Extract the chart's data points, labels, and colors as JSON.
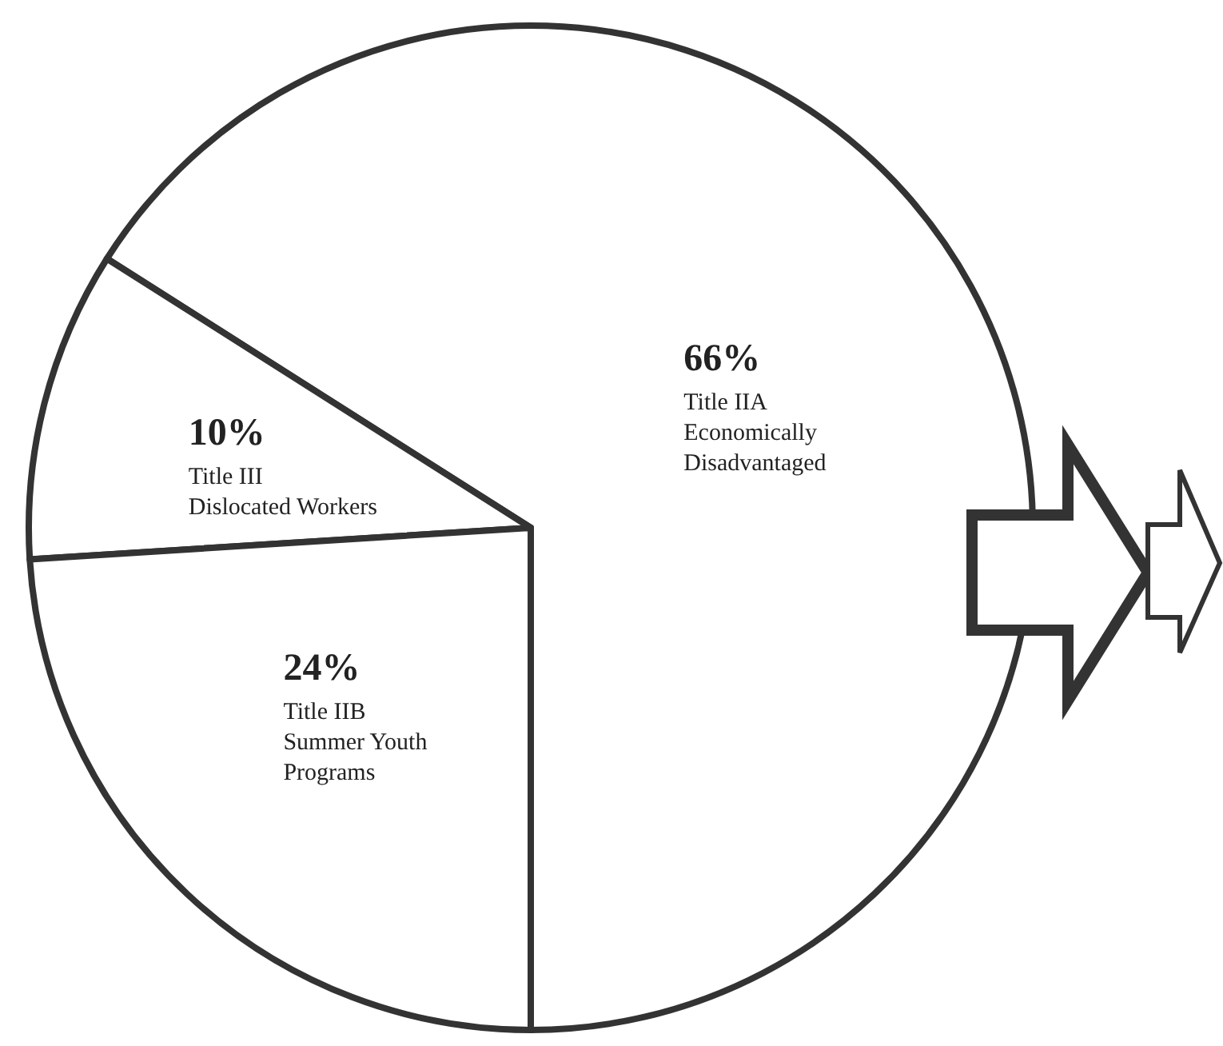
{
  "chart_data": {
    "type": "pie",
    "categories": [
      "Title IIA\nEconomically\nDisadvantaged",
      "Title III\nDislocated Workers",
      "Title IIB\nSummer Youth\nPrograms"
    ],
    "values": [
      66,
      10,
      24
    ],
    "value_labels": [
      "66%",
      "10%",
      "24%"
    ],
    "colors": [
      "#ffffff",
      "#ffffff",
      "#ffffff"
    ],
    "legend": false
  }
}
